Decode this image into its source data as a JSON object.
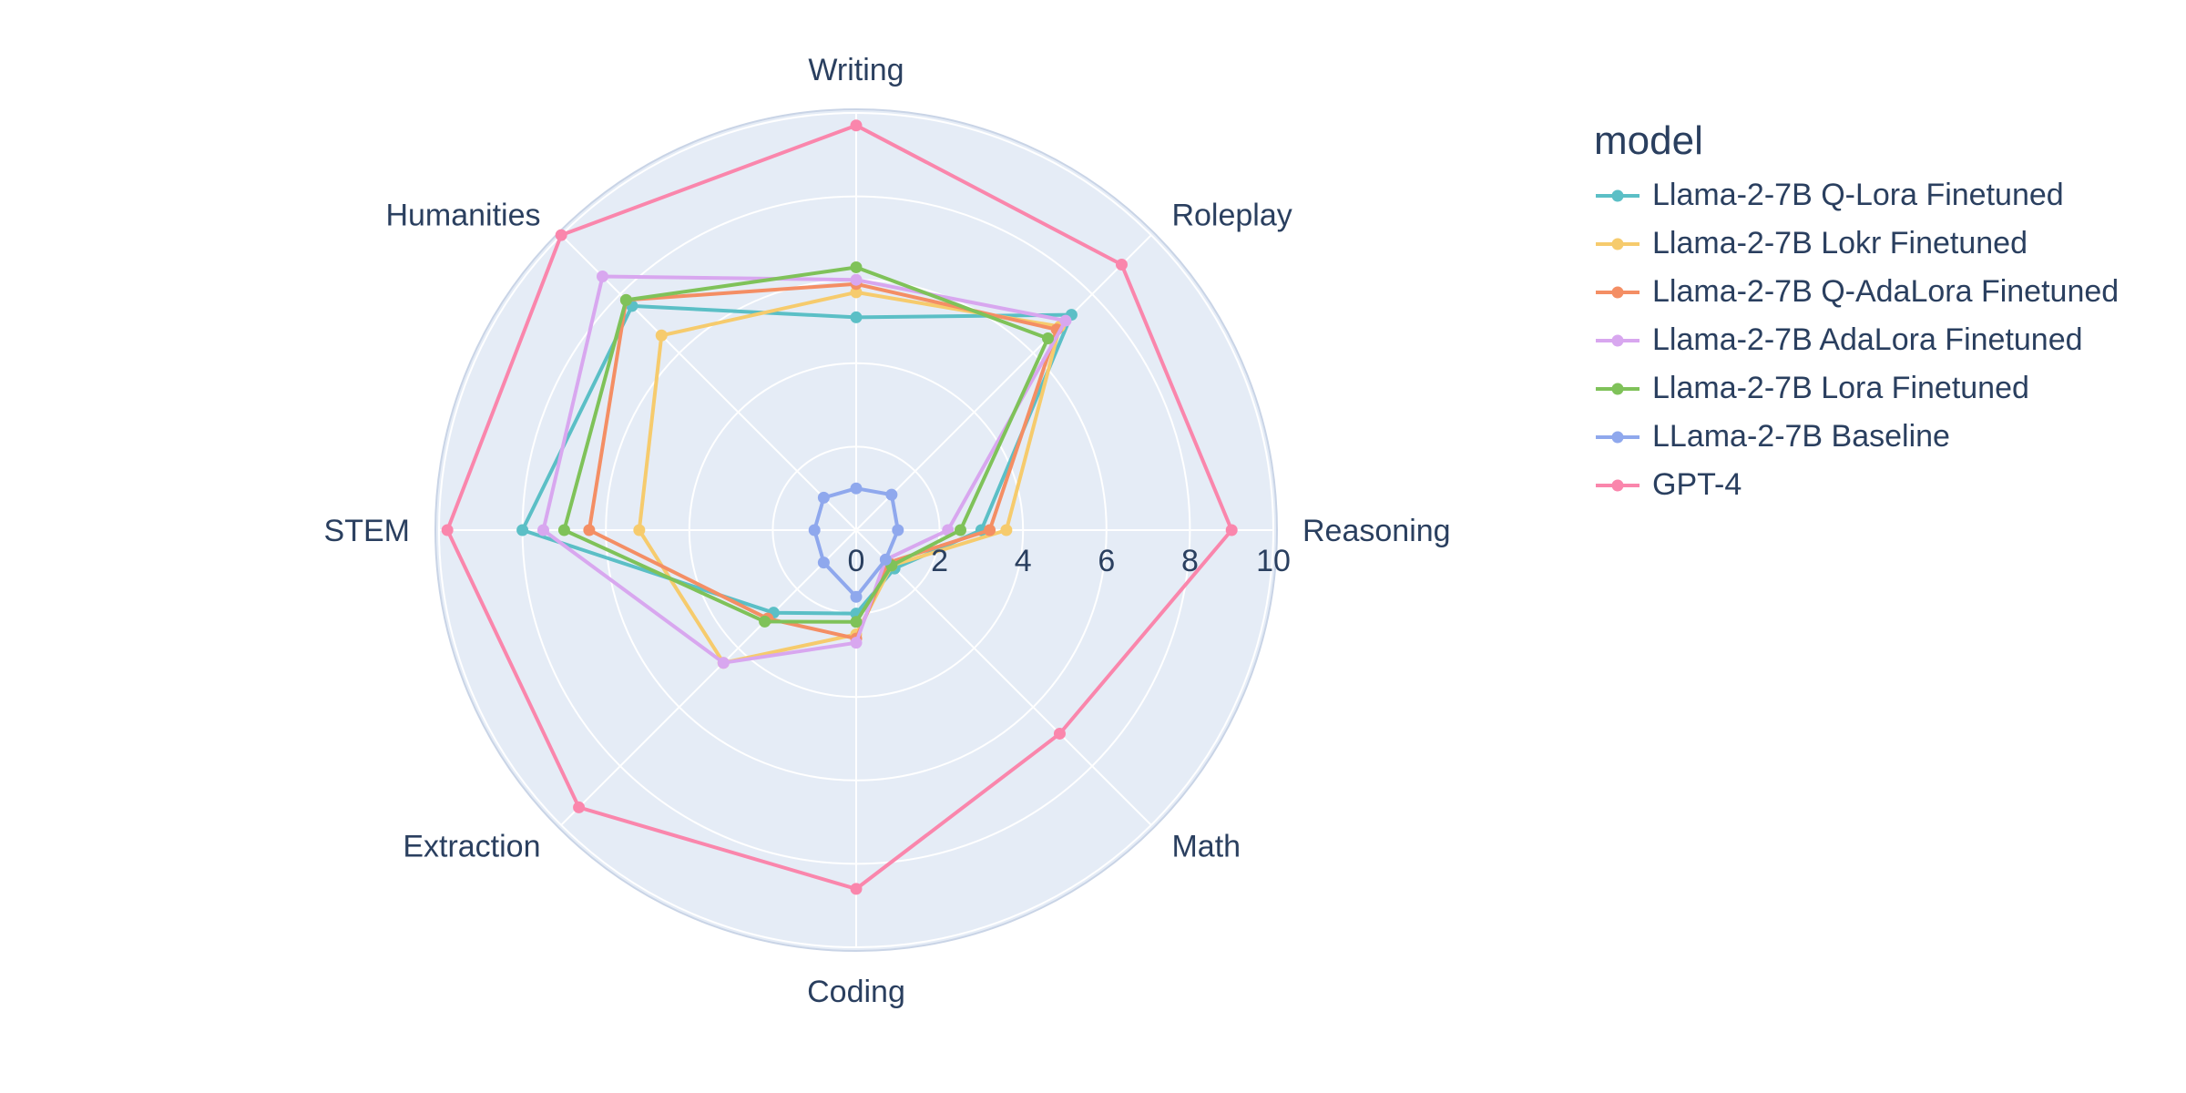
{
  "chart_data": {
    "type": "radar",
    "axes": [
      "Writing",
      "Roleplay",
      "Reasoning",
      "Math",
      "Coding",
      "Extraction",
      "STEM",
      "Humanities"
    ],
    "radial_range": [
      0,
      10
    ],
    "radial_ticks": [
      "0",
      "2",
      "4",
      "6",
      "8",
      "10"
    ],
    "legend_title": "model",
    "legend_placement": "right",
    "series": [
      {
        "name": "Llama-2-7B Q-Lora Finetuned",
        "color": "#5bbfc6",
        "values": [
          5.1,
          7.3,
          3.0,
          1.3,
          2.0,
          2.8,
          8.0,
          7.6
        ]
      },
      {
        "name": "Llama-2-7B Lokr Finetuned",
        "color": "#f6cb6d",
        "values": [
          5.7,
          6.9,
          3.6,
          1.2,
          2.5,
          4.5,
          5.2,
          6.6
        ]
      },
      {
        "name": "Llama-2-7B Q-AdaLora Finetuned",
        "color": "#f48e64",
        "values": [
          5.9,
          6.8,
          3.2,
          1.1,
          2.6,
          3.0,
          6.4,
          7.8
        ]
      },
      {
        "name": "Llama-2-7B AdaLora Finetuned",
        "color": "#d8a7ef",
        "values": [
          6.0,
          7.1,
          2.2,
          1.0,
          2.7,
          4.5,
          7.5,
          8.6
        ]
      },
      {
        "name": "Llama-2-7B Lora Finetuned",
        "color": "#7fc259",
        "values": [
          6.3,
          6.5,
          2.5,
          1.2,
          2.2,
          3.1,
          7.0,
          7.8
        ]
      },
      {
        "name": "LLama-2-7B Baseline",
        "color": "#8fa8ed",
        "values": [
          1.0,
          1.2,
          1.0,
          1.0,
          1.6,
          1.1,
          1.0,
          1.1
        ]
      },
      {
        "name": "GPT-4",
        "color": "#fa86ac",
        "values": [
          9.7,
          9.0,
          9.0,
          6.9,
          8.6,
          9.4,
          9.8,
          10.0
        ]
      }
    ]
  }
}
